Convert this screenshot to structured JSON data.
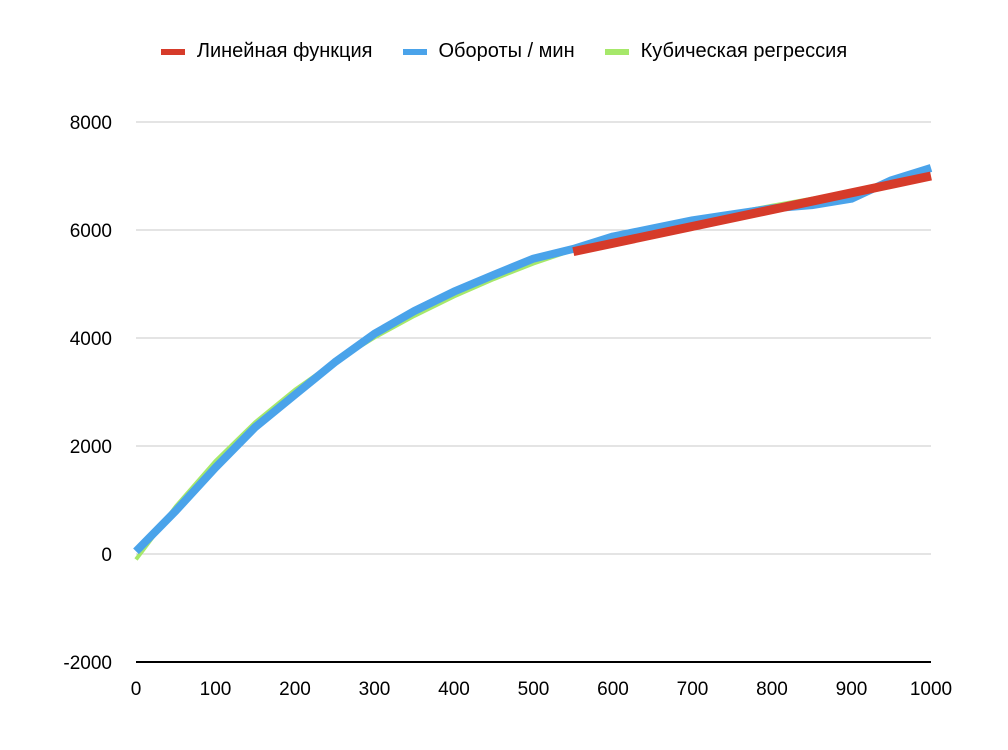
{
  "chart_data": {
    "type": "line",
    "title": "",
    "xlabel": "",
    "ylabel": "",
    "xlim": [
      0,
      1000
    ],
    "ylim": [
      -2000,
      8000
    ],
    "x_ticks": [
      "0",
      "100",
      "200",
      "300",
      "400",
      "500",
      "600",
      "700",
      "800",
      "900",
      "1000"
    ],
    "y_ticks": [
      "-2000",
      "0",
      "2000",
      "4000",
      "6000",
      "8000"
    ],
    "grid": "horizontal",
    "legend_position": "top",
    "series": [
      {
        "name": "Линейная функция",
        "color": "#d63b2a",
        "x": [
          550,
          1000
        ],
        "y": [
          5600,
          7000
        ]
      },
      {
        "name": "Обороты / мин",
        "color": "#4aa3ea",
        "x": [
          0,
          50,
          100,
          150,
          200,
          250,
          300,
          350,
          400,
          450,
          500,
          550,
          600,
          650,
          700,
          750,
          800,
          850,
          900,
          950,
          1000
        ],
        "y": [
          50,
          800,
          1600,
          2350,
          2950,
          3550,
          4080,
          4500,
          4860,
          5170,
          5470,
          5650,
          5880,
          6030,
          6180,
          6290,
          6400,
          6460,
          6580,
          6920,
          7150
        ]
      },
      {
        "name": "Кубическая регрессия",
        "color": "#a6e86a",
        "x": [
          0,
          50,
          100,
          150,
          200,
          250,
          300,
          350,
          400,
          450,
          500,
          550,
          600,
          650,
          700,
          750,
          800,
          850,
          900,
          950,
          1000
        ],
        "y": [
          -100,
          880,
          1720,
          2440,
          3040,
          3560,
          4010,
          4410,
          4770,
          5090,
          5380,
          5630,
          5840,
          6010,
          6170,
          6310,
          6450,
          6580,
          6710,
          6840,
          6960
        ]
      }
    ]
  }
}
